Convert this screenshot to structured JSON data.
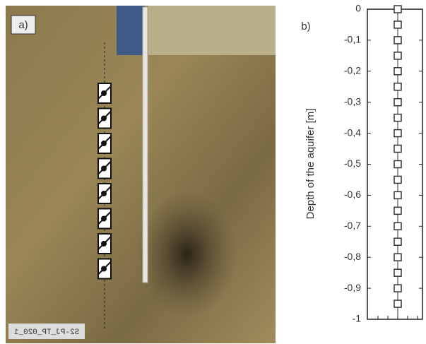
{
  "photo": {
    "panel_label": "a)",
    "stamp": "S2-PJ_TP_020_1"
  },
  "chart_data": {
    "type": "scatter",
    "panel_label": "b)",
    "y_label": "Depth of the aquifer [m]",
    "series": [
      {
        "color": "#333333",
        "values": [
          0,
          -0.05,
          -0.1,
          -0.15,
          -0.2,
          -0.25,
          -0.3,
          -0.35,
          -0.4,
          -0.45,
          -0.5,
          -0.55,
          -0.6,
          -0.65,
          -0.7,
          -0.75,
          -0.8,
          -0.85,
          -0.9,
          -0.95
        ]
      }
    ],
    "ylim": [
      -1,
      0
    ],
    "yticks": [
      0,
      {
        "value": -0.1,
        "label": "-0,1"
      },
      {
        "value": -0.2,
        "label": "-0,2"
      },
      {
        "value": -0.3,
        "label": "-0,3"
      },
      {
        "value": -0.4,
        "label": "-0,4"
      },
      {
        "value": -0.5,
        "label": "-0,5"
      },
      {
        "value": -0.6,
        "label": "-0,6"
      },
      {
        "value": -0.7,
        "label": "-0,7"
      },
      {
        "value": -0.8,
        "label": "-0,8"
      },
      {
        "value": -0.9,
        "label": "-0,9"
      },
      -1
    ]
  }
}
